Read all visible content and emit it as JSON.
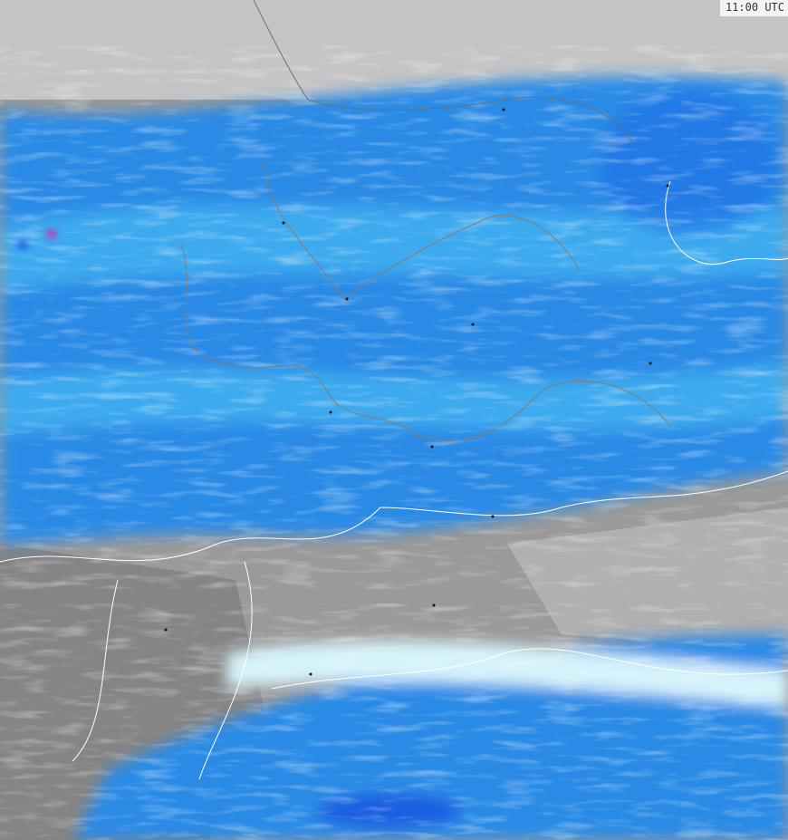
{
  "map": {
    "timestamp": "11:00 UTC",
    "colors": {
      "land_gray": "#9a9a9a",
      "sea_light_gray": "#c4c4c4",
      "dark_gray": "#858585",
      "pale_cyan": "#d6f3fc",
      "light_blue": "#45b8f2",
      "blue": "#2a8be6",
      "deep_blue": "#1f5fe0",
      "magenta": "#e0209a",
      "border_white": "#ffffff",
      "border_brown": "#8c7a6a"
    }
  }
}
